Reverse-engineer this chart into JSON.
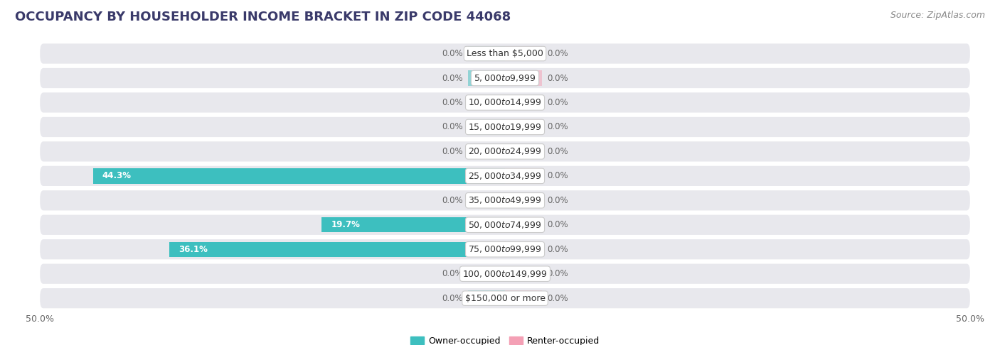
{
  "title": "OCCUPANCY BY HOUSEHOLDER INCOME BRACKET IN ZIP CODE 44068",
  "source": "Source: ZipAtlas.com",
  "categories": [
    "Less than $5,000",
    "$5,000 to $9,999",
    "$10,000 to $14,999",
    "$15,000 to $19,999",
    "$20,000 to $24,999",
    "$25,000 to $34,999",
    "$35,000 to $49,999",
    "$50,000 to $74,999",
    "$75,000 to $99,999",
    "$100,000 to $149,999",
    "$150,000 or more"
  ],
  "owner_values": [
    0.0,
    0.0,
    0.0,
    0.0,
    0.0,
    44.3,
    0.0,
    19.7,
    36.1,
    0.0,
    0.0
  ],
  "renter_values": [
    0.0,
    0.0,
    0.0,
    0.0,
    0.0,
    0.0,
    0.0,
    0.0,
    0.0,
    0.0,
    0.0
  ],
  "owner_color": "#3DBFBF",
  "renter_color": "#F4A0B5",
  "owner_label": "Owner-occupied",
  "renter_label": "Renter-occupied",
  "xlim": 50.0,
  "background_color": "#ffffff",
  "row_bg_color": "#e8e8ed",
  "title_color": "#3a3a6a",
  "source_color": "#888888",
  "label_color_inside": "#ffffff",
  "label_color_outside": "#666666",
  "title_fontsize": 13,
  "source_fontsize": 9,
  "axis_fontsize": 9,
  "bar_label_fontsize": 8.5,
  "category_fontsize": 9,
  "min_bar_display": 5.0
}
